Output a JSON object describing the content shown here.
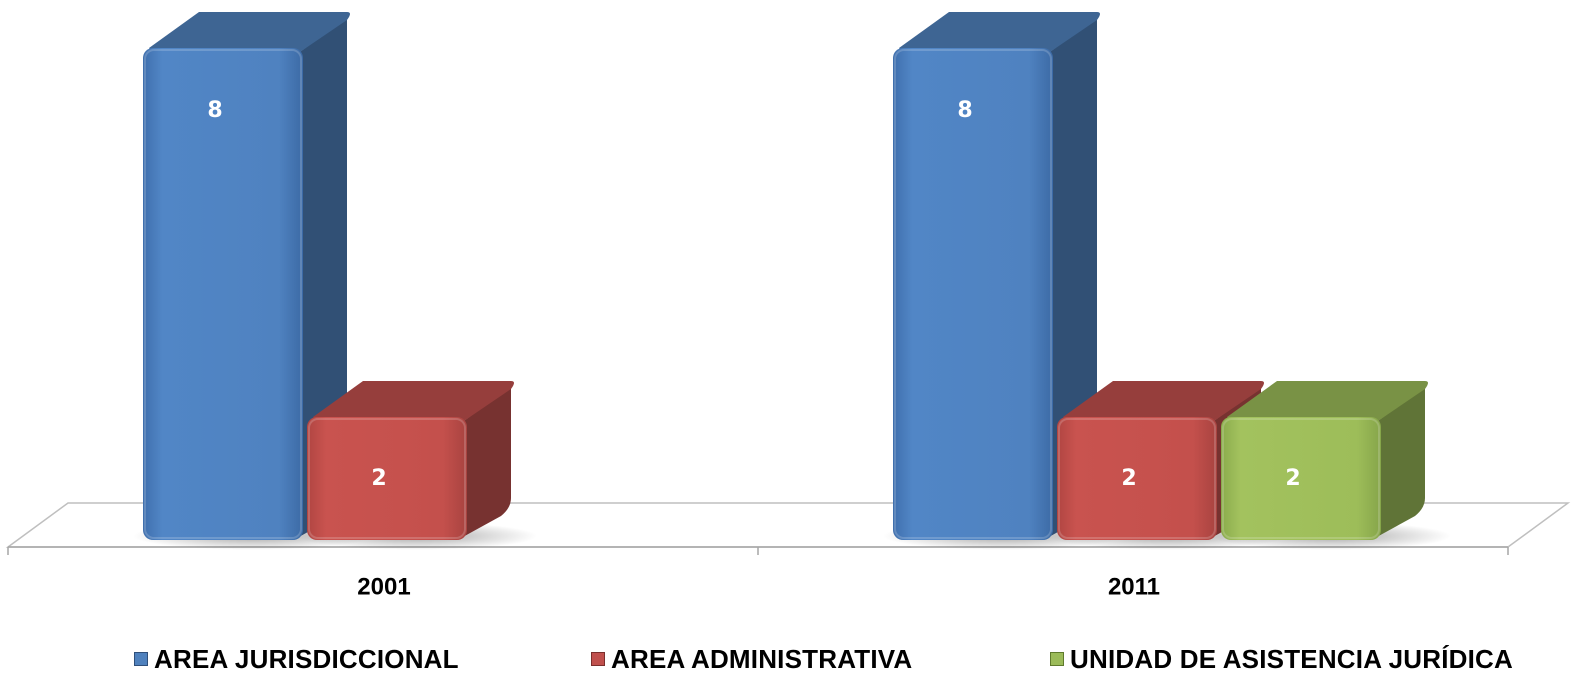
{
  "chart_data": {
    "type": "bar",
    "categories": [
      "2001",
      "2011"
    ],
    "series": [
      {
        "name": "AREA JURISDICCIONAL",
        "values": [
          8,
          8
        ],
        "color": "#4F81BD"
      },
      {
        "name": "AREA ADMINISTRATIVA",
        "values": [
          2,
          2
        ],
        "color": "#C0504D"
      },
      {
        "name": "UNIDAD DE ASISTENCIA JURÍDICA",
        "values": [
          null,
          2
        ],
        "color": "#9BBB59"
      }
    ],
    "data_labels": true,
    "grid": false,
    "legend_position": "bottom",
    "style": "3d-column"
  }
}
